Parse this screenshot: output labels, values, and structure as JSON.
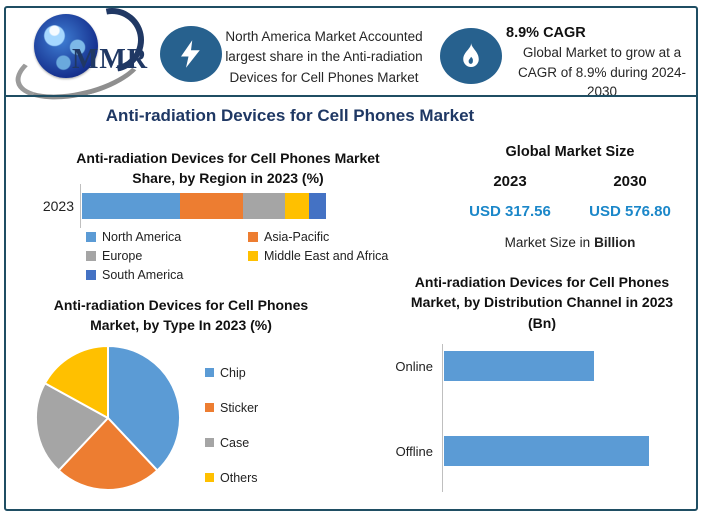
{
  "colors": {
    "border": "#1F4E63",
    "navy-title": "#1F3864",
    "icon-circle": "#27618E",
    "usd-value": "#1B87C9",
    "axis-line": "#BFBFBF"
  },
  "header": {
    "logo_text": "MMR",
    "highlight1": {
      "icon": "lightning-bolt",
      "text": "North America Market Accounted largest share in the Anti-radiation Devices for Cell Phones Market"
    },
    "highlight2": {
      "icon": "flame",
      "title": "8.9% CAGR",
      "text": "Global Market to grow at a CAGR of 8.9% during 2024-2030"
    }
  },
  "main_title": "Anti-radiation Devices for Cell Phones Market",
  "chart_data": [
    {
      "id": "region_share",
      "type": "bar",
      "subtype": "stacked-horizontal",
      "title": "Anti-radiation Devices for Cell Phones Market Share, by Region in 2023 (%)",
      "categories": [
        "2023"
      ],
      "series": [
        {
          "name": "North America",
          "color": "#5B9BD5",
          "value": 40
        },
        {
          "name": "Asia-Pacific",
          "color": "#ED7D31",
          "value": 26
        },
        {
          "name": "Europe",
          "color": "#A5A5A5",
          "value": 17
        },
        {
          "name": "Middle East and Africa",
          "color": "#FFC000",
          "value": 10
        },
        {
          "name": "South America",
          "color": "#4472C4",
          "value": 7
        }
      ],
      "xlim": [
        0,
        100
      ],
      "grid": false,
      "legend_position": "bottom",
      "value_labels_shown": false
    },
    {
      "id": "global_market_size",
      "type": "table",
      "title": "Global Market Size",
      "columns": [
        "2023",
        "2030"
      ],
      "values": [
        "USD 317.56",
        "USD 576.80"
      ],
      "footnote_prefix": "Market Size in",
      "footnote_bold": "Billion"
    },
    {
      "id": "type_share",
      "type": "pie",
      "title": "Anti-radiation Devices for Cell Phones Market, by Type In 2023 (%)",
      "slices": [
        {
          "name": "Chip",
          "color": "#5B9BD5",
          "value": 38
        },
        {
          "name": "Sticker",
          "color": "#ED7D31",
          "value": 24
        },
        {
          "name": "Case",
          "color": "#A5A5A5",
          "value": 21
        },
        {
          "name": "Others",
          "color": "#FFC000",
          "value": 17
        }
      ],
      "start_angle_deg": 0,
      "legend_position": "right",
      "value_labels_shown": false
    },
    {
      "id": "distribution_channel",
      "type": "bar",
      "subtype": "horizontal",
      "title": "Anti-radiation Devices for Cell Phones Market, by Distribution Channel in 2023 (Bn)",
      "categories": [
        "Online",
        "Offline"
      ],
      "values": [
        73,
        100
      ],
      "value_scale": "percent-of-longest-bar (no axis value labels shown)",
      "bar_color": "#5B9BD5",
      "grid": false,
      "value_labels_shown": false
    }
  ]
}
